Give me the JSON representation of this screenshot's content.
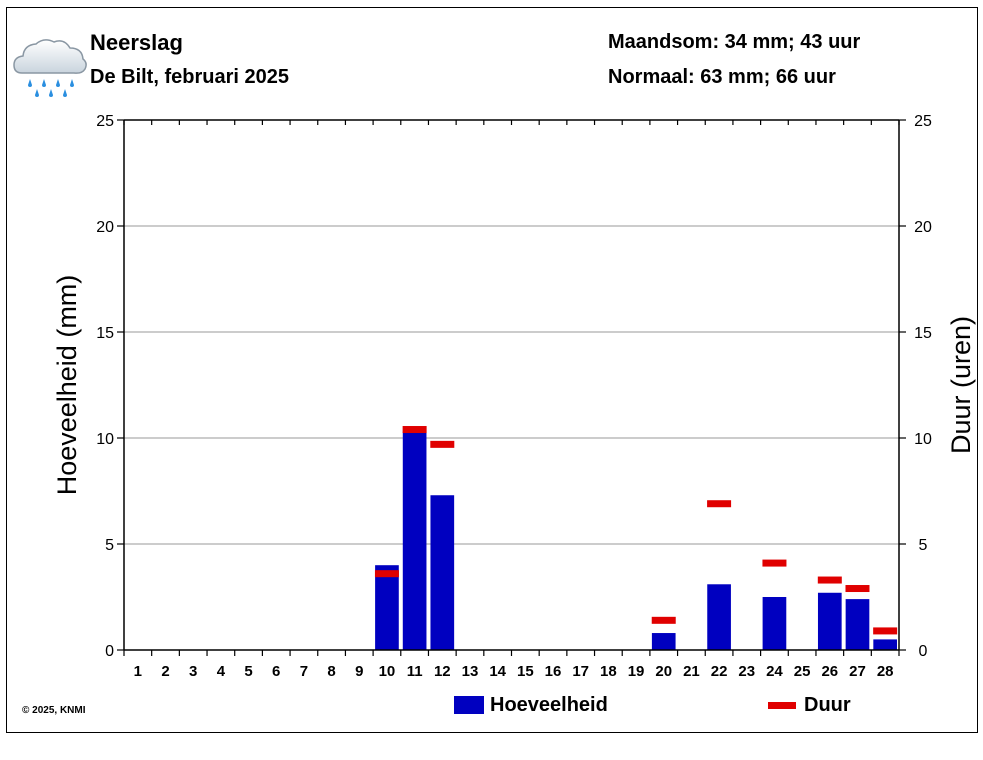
{
  "header": {
    "title": "Neerslag",
    "subtitle": "De Bilt, februari 2025",
    "month_sum": "Maandsom: 34 mm; 43 uur",
    "normal": "Normaal: 63 mm; 66 uur"
  },
  "icon": "rain-cloud-icon",
  "copyright": "© 2025, KNMI",
  "colors": {
    "bar": "#0000c0",
    "duration": "#e00000",
    "icon_rain": "#2b8fe0"
  },
  "chart_data": {
    "type": "bar",
    "xlabel": "",
    "ylabel": "Hoeveelheid (mm)",
    "y2label": "Duur (uren)",
    "ylim": [
      0,
      25
    ],
    "y2lim": [
      0,
      25
    ],
    "yticks": [
      "0",
      "5",
      "10",
      "15",
      "20",
      "25"
    ],
    "y2ticks": [
      "0",
      "5",
      "10",
      "15",
      "20",
      "25"
    ],
    "grid": true,
    "categories": [
      "1",
      "2",
      "3",
      "4",
      "5",
      "6",
      "7",
      "8",
      "9",
      "10",
      "11",
      "12",
      "13",
      "14",
      "15",
      "16",
      "17",
      "18",
      "19",
      "20",
      "21",
      "22",
      "23",
      "24",
      "25",
      "26",
      "27",
      "28"
    ],
    "series": [
      {
        "name": "Hoeveelheid",
        "kind": "bar",
        "values": [
          0,
          0,
          0,
          0,
          0,
          0,
          0,
          0,
          0,
          4.0,
          10.3,
          7.3,
          0,
          0,
          0,
          0,
          0,
          0,
          0,
          0.8,
          0,
          3.1,
          0,
          2.5,
          0,
          2.7,
          2.4,
          0.5
        ]
      },
      {
        "name": "Duur",
        "kind": "marker",
        "values": [
          0,
          0,
          0,
          0,
          0,
          0,
          0,
          0,
          0,
          3.6,
          10.4,
          9.7,
          0,
          0,
          0,
          0,
          0,
          0,
          0,
          1.4,
          0,
          6.9,
          0,
          4.1,
          0,
          3.3,
          2.9,
          0.9
        ]
      }
    ],
    "legend": [
      "Hoeveelheid",
      "Duur"
    ],
    "legend_position": "bottom"
  }
}
